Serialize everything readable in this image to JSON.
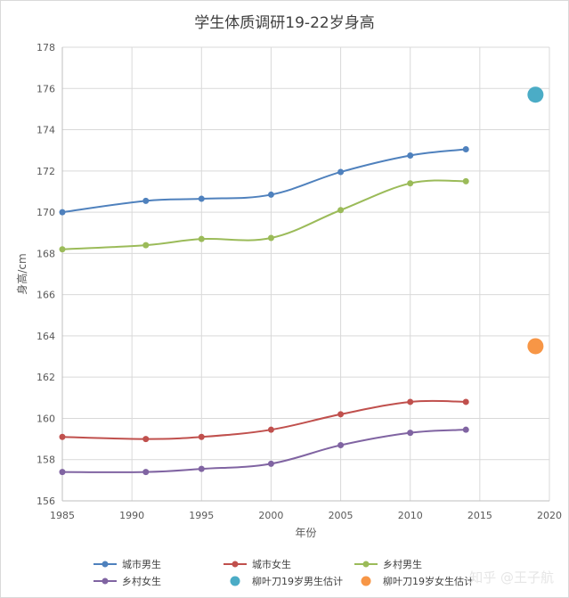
{
  "chart_data": {
    "type": "line",
    "title": "学生体质调研19-22岁身高",
    "xlabel": "年份",
    "ylabel": "身高/cm",
    "xlim": [
      1985,
      2020
    ],
    "ylim": [
      156,
      178
    ],
    "xticks": [
      1985,
      1990,
      1995,
      2000,
      2005,
      2010,
      2015,
      2020
    ],
    "yticks": [
      156,
      158,
      160,
      162,
      164,
      166,
      168,
      170,
      172,
      174,
      176,
      178
    ],
    "grid": true,
    "legend_position": "bottom",
    "series": [
      {
        "name": "城市男生",
        "color": "#4f81bd",
        "kind": "line",
        "x": [
          1985,
          1991,
          1995,
          2000,
          2005,
          2010,
          2014
        ],
        "y": [
          170.0,
          170.55,
          170.65,
          170.85,
          171.95,
          172.75,
          173.05
        ]
      },
      {
        "name": "城市女生",
        "color": "#c0504d",
        "kind": "line",
        "x": [
          1985,
          1991,
          1995,
          2000,
          2005,
          2010,
          2014
        ],
        "y": [
          159.1,
          159.0,
          159.1,
          159.45,
          160.2,
          160.8,
          160.8
        ]
      },
      {
        "name": "乡村男生",
        "color": "#9bbb59",
        "kind": "line",
        "x": [
          1985,
          1991,
          1995,
          2000,
          2005,
          2010,
          2014
        ],
        "y": [
          168.2,
          168.4,
          168.7,
          168.75,
          170.1,
          171.4,
          171.5
        ]
      },
      {
        "name": "乡村女生",
        "color": "#8064a2",
        "kind": "line",
        "x": [
          1985,
          1991,
          1995,
          2000,
          2005,
          2010,
          2014
        ],
        "y": [
          157.4,
          157.4,
          157.55,
          157.8,
          158.7,
          159.3,
          159.45
        ]
      },
      {
        "name": "柳叶刀19岁男生估计",
        "color": "#4bacc6",
        "kind": "point",
        "x": [
          2019
        ],
        "y": [
          175.7
        ]
      },
      {
        "name": "柳叶刀19岁女生估计",
        "color": "#f79646",
        "kind": "point",
        "x": [
          2019
        ],
        "y": [
          163.5
        ]
      }
    ]
  },
  "watermark": "知乎 @王子航"
}
